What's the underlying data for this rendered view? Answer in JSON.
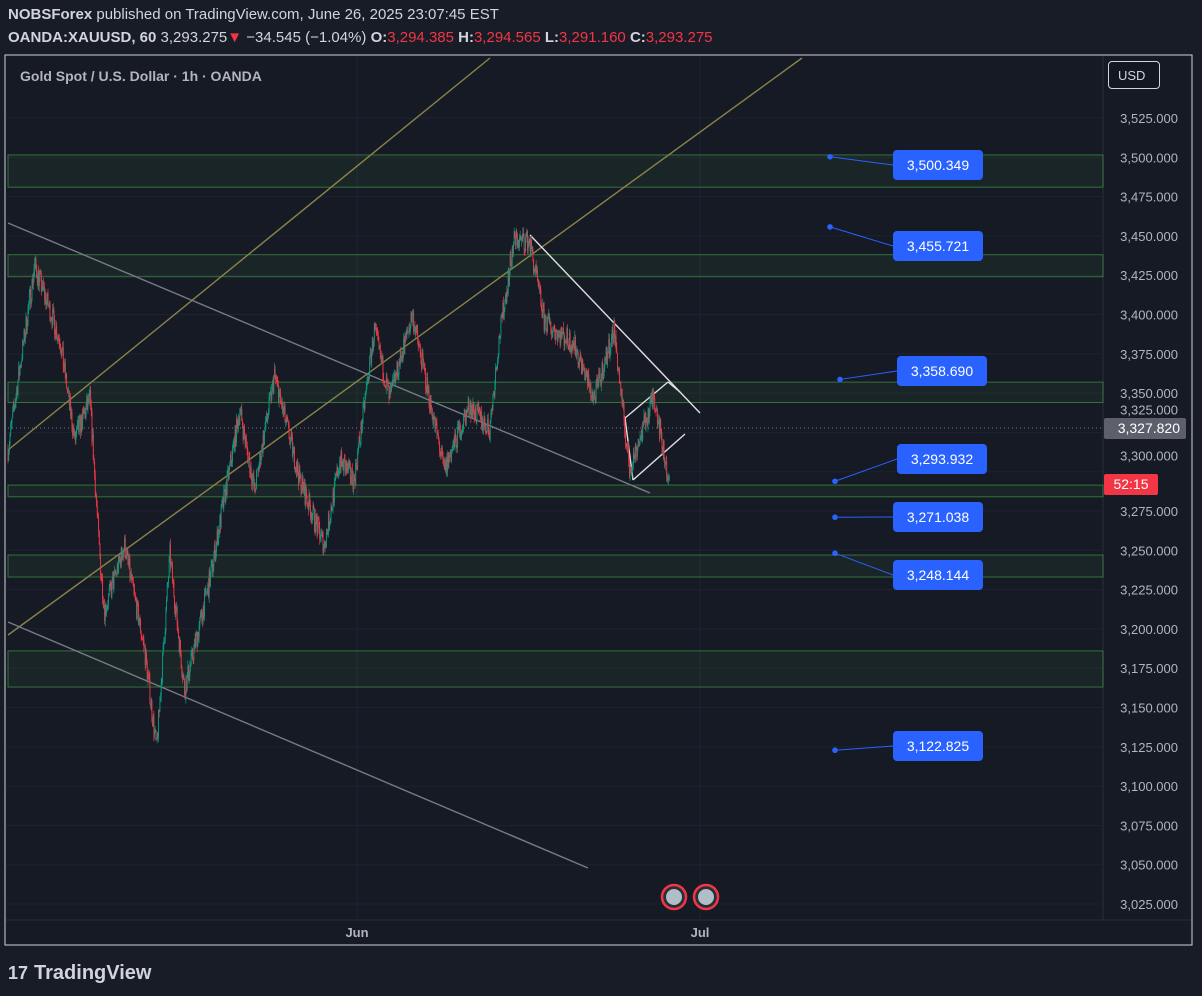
{
  "header": {
    "publisher": "NOBSForex",
    "published_text": "published on TradingView.com, June 26, 2025 23:07:45 EST",
    "symbol": "OANDA:XAUUSD, 60",
    "last": "3,293.275",
    "change": "−34.545 (−1.04%)",
    "o_label": "O:",
    "o": "3,294.385",
    "h_label": "H:",
    "h": "3,294.565",
    "l_label": "L:",
    "l": "3,291.160",
    "c_label": "C:",
    "c": "3,293.275"
  },
  "chart_title": "Gold Spot / U.S. Dollar · 1h · OANDA",
  "currency_button": "USD",
  "brand": "TradingView",
  "colors": {
    "up": "#089981",
    "down": "#f23645",
    "label": "#2962ff",
    "zone": "#4caf50",
    "trend_gold": "#8a8448",
    "trend_gray": "#787b86"
  },
  "chart_data": {
    "type": "candlestick",
    "ylim": [
      3010,
      3545
    ],
    "y_ticks": [
      3525,
      3500,
      3475,
      3450,
      3425,
      3400,
      3375,
      3350,
      3325,
      3300,
      3275,
      3250,
      3225,
      3200,
      3175,
      3150,
      3125,
      3100,
      3075,
      3050,
      3025
    ],
    "y_tick_labels": [
      "3,525.000",
      "3,500.000",
      "3,475.000",
      "3,450.000",
      "3,425.000",
      "3,400.000",
      "3,375.000",
      "3,350.000",
      "3,325.000",
      "3,300.000",
      "3,275.000",
      "3,250.000",
      "3,225.000",
      "3,200.000",
      "3,175.000",
      "3,150.000",
      "3,125.000",
      "3,100.000",
      "3,075.000",
      "3,050.000",
      "3,025.000"
    ],
    "x_tick_labels": [
      "Jun",
      "Jul"
    ],
    "approx_price_path": [
      [
        0,
        3314
      ],
      [
        40,
        3431
      ],
      [
        78,
        3384
      ],
      [
        100,
        3320
      ],
      [
        123,
        3346
      ],
      [
        138,
        3244
      ],
      [
        145,
        3212
      ],
      [
        175,
        3253
      ],
      [
        205,
        3187
      ],
      [
        223,
        3123
      ],
      [
        243,
        3247
      ],
      [
        265,
        3161
      ],
      [
        303,
        3231
      ],
      [
        348,
        3339
      ],
      [
        370,
        3288
      ],
      [
        400,
        3361
      ],
      [
        438,
        3295
      ],
      [
        475,
        3253
      ],
      [
        498,
        3307
      ],
      [
        520,
        3295
      ],
      [
        550,
        3390
      ],
      [
        573,
        3346
      ],
      [
        607,
        3400
      ],
      [
        633,
        3346
      ],
      [
        655,
        3301
      ],
      [
        693,
        3342
      ],
      [
        723,
        3327
      ],
      [
        738,
        3387
      ],
      [
        760,
        3447
      ],
      [
        783,
        3447
      ],
      [
        805,
        3396
      ],
      [
        850,
        3381
      ],
      [
        880,
        3346
      ],
      [
        910,
        3390
      ],
      [
        933,
        3301
      ],
      [
        970,
        3349
      ],
      [
        993,
        3291
      ]
    ],
    "zones": [
      [
        3481,
        3501.5
      ],
      [
        3424,
        3438
      ],
      [
        3344,
        3357
      ],
      [
        3284,
        3291.5
      ],
      [
        3233,
        3247
      ],
      [
        3163,
        3186
      ]
    ],
    "price_labels": [
      "3,500.349",
      "3,455.721",
      "3,358.690",
      "3,293.932",
      "3,271.038",
      "3,248.144",
      "3,122.825"
    ],
    "price_label_values": [
      3500.349,
      3455.721,
      3358.69,
      3293.932,
      3271.038,
      3248.144,
      3122.825
    ],
    "previous_close_label": "3,327.820",
    "previous_close": 3327.82,
    "countdown_label": "52:15",
    "last_price": 3293.275
  }
}
